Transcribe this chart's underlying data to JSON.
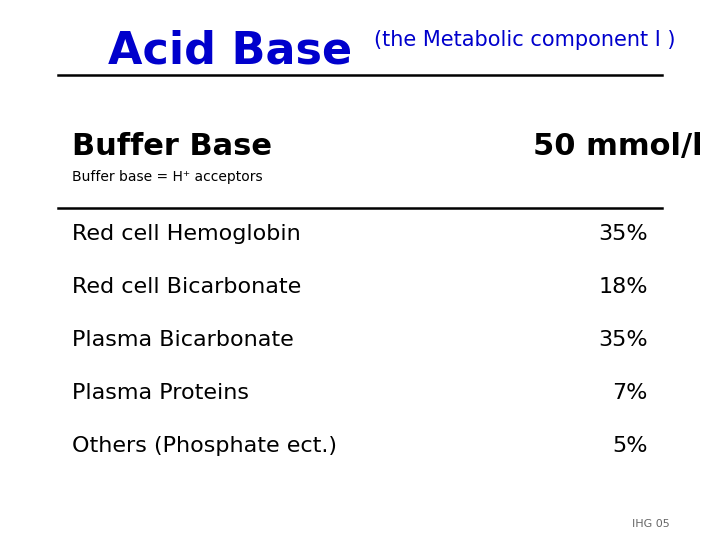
{
  "title_main": "Acid Base",
  "title_sub": "(the Metabolic component I )",
  "title_main_color": "#0000CC",
  "title_sub_color": "#0000CC",
  "background_color": "#FFFFFF",
  "buffer_base_label": "Buffer Base",
  "buffer_base_value": "50 mmol/l",
  "buffer_base_sub": "Buffer base = H⁺ acceptors",
  "items": [
    "Red cell Hemoglobin",
    "Red cell Bicarbonate",
    "Plasma Bicarbonate",
    "Plasma Proteins",
    "Others (Phosphate ect.)"
  ],
  "percentages": [
    "35%",
    "18%",
    "35%",
    "7%",
    "5%"
  ],
  "footer_text": "IHG 05",
  "line_color": "#000000",
  "title_main_fontsize": 32,
  "title_sub_fontsize": 15,
  "buffer_label_fontsize": 22,
  "buffer_sub_fontsize": 10,
  "item_fontsize": 16
}
